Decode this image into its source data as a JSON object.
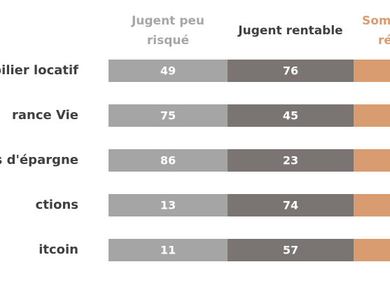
{
  "table": {
    "columns": [
      {
        "header": [
          "Jugent peu",
          "risqué"
        ],
        "color": "#a5a5a5",
        "header_color": "#a6a6a6"
      },
      {
        "header": [
          "Jugent rentable"
        ],
        "color": "#7a7572",
        "header_color": "#404040"
      },
      {
        "header": [
          "Som",
          "ré"
        ],
        "color": "#d99c70",
        "header_color": "#d99c70"
      }
    ],
    "rows": [
      {
        "label": "bilier locatif",
        "values": [
          49,
          76
        ]
      },
      {
        "label": "rance Vie",
        "values": [
          75,
          45
        ]
      },
      {
        "label": "s d'épargne",
        "values": [
          86,
          23
        ]
      },
      {
        "label": "ctions",
        "values": [
          13,
          74
        ]
      },
      {
        "label": "itcoin",
        "values": [
          11,
          57
        ]
      }
    ]
  }
}
